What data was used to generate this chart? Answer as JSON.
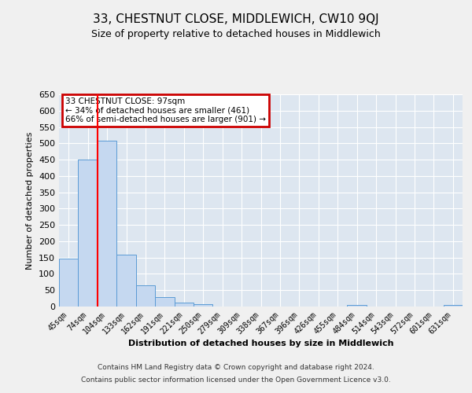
{
  "title": "33, CHESTNUT CLOSE, MIDDLEWICH, CW10 9QJ",
  "subtitle": "Size of property relative to detached houses in Middlewich",
  "xlabel": "Distribution of detached houses by size in Middlewich",
  "ylabel": "Number of detached properties",
  "bin_labels": [
    "45sqm",
    "74sqm",
    "104sqm",
    "133sqm",
    "162sqm",
    "191sqm",
    "221sqm",
    "250sqm",
    "279sqm",
    "309sqm",
    "338sqm",
    "367sqm",
    "396sqm",
    "426sqm",
    "455sqm",
    "484sqm",
    "514sqm",
    "543sqm",
    "572sqm",
    "601sqm",
    "631sqm"
  ],
  "bar_values": [
    148,
    450,
    507,
    158,
    65,
    30,
    12,
    7,
    0,
    0,
    0,
    0,
    0,
    0,
    0,
    6,
    0,
    0,
    0,
    0,
    6
  ],
  "bar_color": "#c5d8f0",
  "bar_edge_color": "#5b9bd5",
  "red_line_x": 1.5,
  "annotation_title": "33 CHESTNUT CLOSE: 97sqm",
  "annotation_line1": "← 34% of detached houses are smaller (461)",
  "annotation_line2": "66% of semi-detached houses are larger (901) →",
  "annotation_box_facecolor": "#ffffff",
  "annotation_box_edge_color": "#cc0000",
  "ylim": [
    0,
    650
  ],
  "yticks": [
    0,
    50,
    100,
    150,
    200,
    250,
    300,
    350,
    400,
    450,
    500,
    550,
    600,
    650
  ],
  "footer_line1": "Contains HM Land Registry data © Crown copyright and database right 2024.",
  "footer_line2": "Contains public sector information licensed under the Open Government Licence v3.0.",
  "fig_facecolor": "#f0f0f0",
  "plot_facecolor": "#dde6f0",
  "grid_color": "#ffffff",
  "title_fontsize": 11,
  "subtitle_fontsize": 9,
  "tick_fontsize": 7,
  "ylabel_fontsize": 8,
  "xlabel_fontsize": 8,
  "footer_fontsize": 6.5
}
